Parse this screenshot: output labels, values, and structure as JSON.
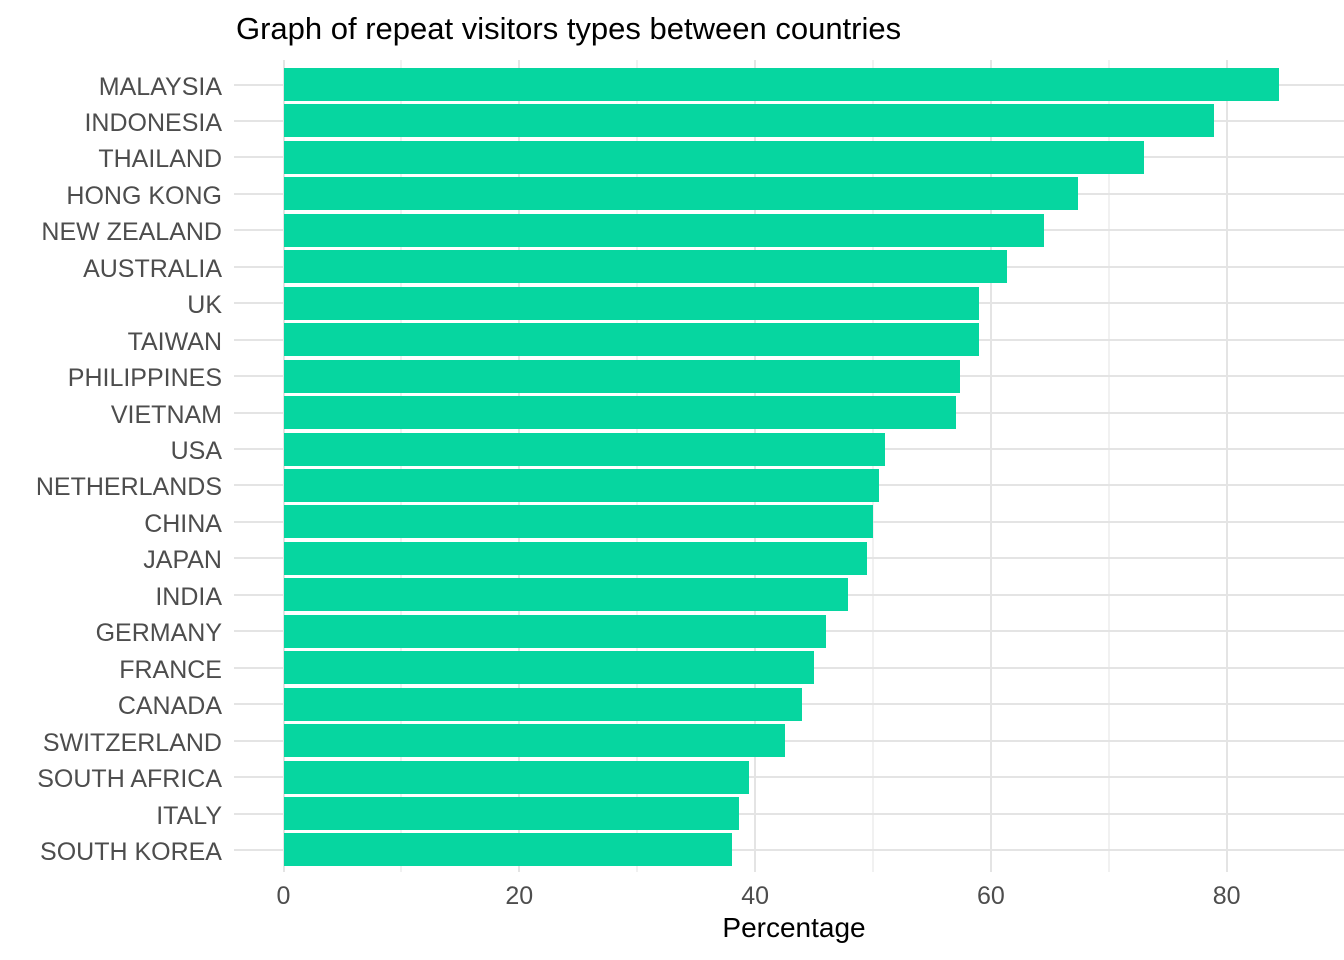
{
  "chart_data": {
    "type": "bar",
    "orientation": "horizontal",
    "title": "Graph of repeat visitors types between countries",
    "xlabel": "Percentage",
    "ylabel": "",
    "categories": [
      "MALAYSIA",
      "INDONESIA",
      "THAILAND",
      "HONG KONG",
      "NEW ZEALAND",
      "AUSTRALIA",
      "UK",
      "TAIWAN",
      "PHILIPPINES",
      "VIETNAM",
      "USA",
      "NETHERLANDS",
      "CHINA",
      "JAPAN",
      "INDIA",
      "GERMANY",
      "FRANCE",
      "CANADA",
      "SWITZERLAND",
      "SOUTH AFRICA",
      "ITALY",
      "SOUTH KOREA"
    ],
    "values": [
      84.4,
      78.9,
      73.0,
      67.4,
      64.5,
      61.4,
      59.0,
      59.0,
      57.4,
      57.0,
      51.0,
      50.5,
      50.0,
      49.5,
      47.9,
      46.0,
      45.0,
      44.0,
      42.5,
      39.5,
      38.6,
      38.0
    ],
    "xlim": [
      0,
      90
    ],
    "x_ticks": [
      0,
      20,
      40,
      60,
      80
    ],
    "x_minor_ticks": [
      10,
      30,
      50,
      70,
      90
    ],
    "grid": "major and minor vertical, one horizontal line per category",
    "legend_position": "none",
    "bar_color": "#06D6A0",
    "grid_major_color": "#E4E4E4",
    "grid_minor_color": "#F1F1F1",
    "axis_text_color": "#4D4D4D",
    "title_color": "#000000",
    "background_color": "#FFFFFF"
  }
}
